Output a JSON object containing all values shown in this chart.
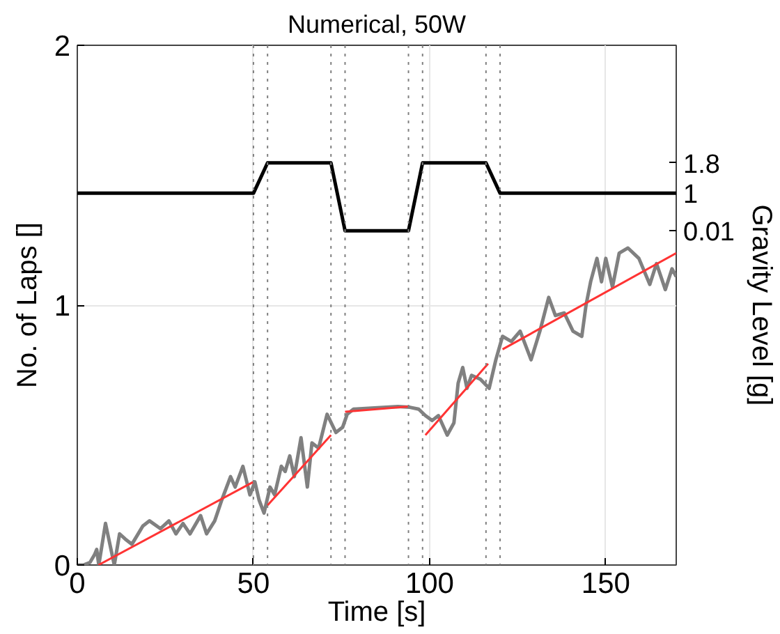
{
  "chart_data": {
    "type": "line",
    "title": "Numerical, 50W",
    "xlabel": "Time [s]",
    "ylabel": "No. of Laps []",
    "y2label": "Gravity Level [g]",
    "xlim": [
      0,
      170
    ],
    "xticks": [
      0,
      50,
      100,
      150
    ],
    "ylim": [
      0,
      2
    ],
    "yticks": [
      0,
      1,
      2
    ],
    "y2lim": [
      -8.8,
      4.9
    ],
    "y2ticks": [
      1.8,
      1,
      0.01
    ],
    "grid": true,
    "marker": "none",
    "line_style": "solid",
    "series": [
      {
        "color": "#000000",
        "axis": "y2",
        "x": [
          0,
          50,
          54,
          72,
          76,
          94,
          98,
          116,
          120,
          170
        ],
        "values": [
          1,
          1,
          1.8,
          1.8,
          0.01,
          0.01,
          1.8,
          1.8,
          1,
          1
        ]
      },
      {
        "color": "#808080",
        "x": [
          0,
          1.7,
          3.6,
          4.9,
          5.5,
          6.1,
          8,
          10.5,
          12,
          13.6,
          15.5,
          18.6,
          20.5,
          23.6,
          26,
          28,
          30,
          32,
          35,
          36.7,
          39,
          41,
          43.5,
          44.8,
          47,
          49,
          50.4,
          51.6,
          53,
          54.7,
          56,
          57.9,
          59,
          60.3,
          61.6,
          63.5,
          65.3,
          66.6,
          68.5,
          70.9,
          73.4,
          75.3,
          76.6,
          78.4,
          91,
          94.4,
          96.9,
          98.8,
          100.7,
          102.5,
          105,
          106.9,
          108.1,
          109.4,
          110.6,
          111.9,
          114.4,
          116.9,
          118.8,
          120.7,
          123.2,
          125.7,
          128.8,
          131.3,
          133.8,
          135.7,
          138.2,
          140.7,
          143.2,
          144.4,
          145.7,
          147.5,
          148.8,
          150,
          151.9,
          153.8,
          156.3,
          159.4,
          162.5,
          164.4,
          166.9,
          168.8,
          170
        ],
        "values": [
          0,
          0,
          0.01,
          0.04,
          0.06,
          0.0,
          0.16,
          0.0,
          0.12,
          0.1,
          0.08,
          0.15,
          0.17,
          0.14,
          0.17,
          0.12,
          0.16,
          0.12,
          0.19,
          0.12,
          0.17,
          0.25,
          0.34,
          0.3,
          0.38,
          0.27,
          0.32,
          0.25,
          0.2,
          0.3,
          0.27,
          0.38,
          0.36,
          0.42,
          0.34,
          0.49,
          0.3,
          0.47,
          0.45,
          0.58,
          0.51,
          0.53,
          0.58,
          0.6,
          0.61,
          0.607,
          0.6,
          0.575,
          0.556,
          0.575,
          0.5,
          0.547,
          0.7,
          0.76,
          0.68,
          0.73,
          0.715,
          0.68,
          0.79,
          0.88,
          0.86,
          0.9,
          0.79,
          0.9,
          1.03,
          0.96,
          0.97,
          0.9,
          0.88,
          1.0,
          1.09,
          1.18,
          1.09,
          1.18,
          1.07,
          1.2,
          1.22,
          1.18,
          1.08,
          1.16,
          1.06,
          1.14,
          1.11
        ]
      },
      {
        "color": "#ff3333",
        "x": [
          6,
          50
        ],
        "values": [
          0,
          0.32
        ]
      },
      {
        "color": "#ff3333",
        "x": [
          54,
          72
        ],
        "values": [
          0.23,
          0.5
        ]
      },
      {
        "color": "#ff3333",
        "x": [
          76,
          94
        ],
        "values": [
          0.59,
          0.61
        ]
      },
      {
        "color": "#ff3333",
        "x": [
          98.8,
          116.6
        ],
        "values": [
          0.5,
          0.775
        ]
      },
      {
        "color": "#ff3333",
        "x": [
          120.7,
          170
        ],
        "values": [
          0.83,
          1.2
        ]
      }
    ],
    "ref_lines": [
      {
        "axis": "x",
        "value": 50,
        "color": "#808080",
        "line_style": "dotted"
      },
      {
        "axis": "x",
        "value": 54,
        "color": "#808080",
        "line_style": "dotted"
      },
      {
        "axis": "x",
        "value": 72,
        "color": "#808080",
        "line_style": "dotted"
      },
      {
        "axis": "x",
        "value": 76,
        "color": "#808080",
        "line_style": "dotted"
      },
      {
        "axis": "x",
        "value": 94,
        "color": "#808080",
        "line_style": "dotted"
      },
      {
        "axis": "x",
        "value": 98,
        "color": "#808080",
        "line_style": "dotted"
      },
      {
        "axis": "x",
        "value": 116,
        "color": "#808080",
        "line_style": "dotted"
      },
      {
        "axis": "x",
        "value": 120,
        "color": "#808080",
        "line_style": "dotted"
      }
    ]
  }
}
